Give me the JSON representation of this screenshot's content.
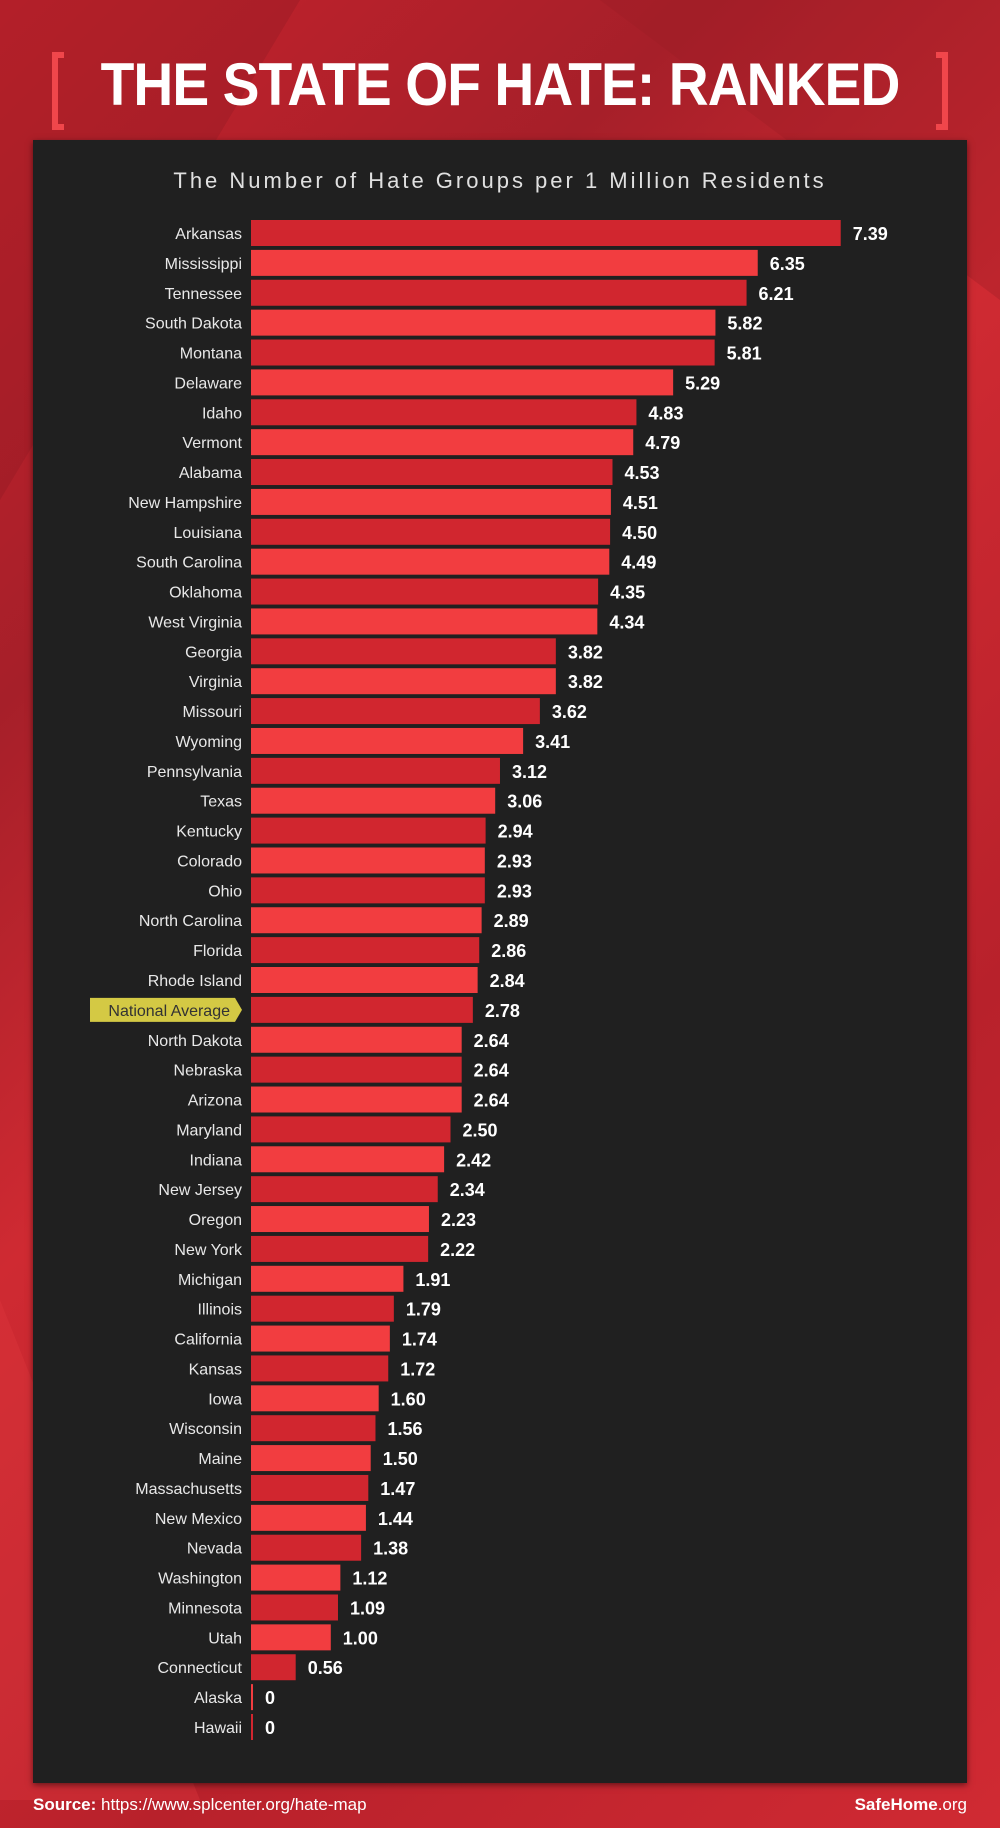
{
  "title": "THE STATE OF HATE: RANKED",
  "footer": {
    "source_label": "Source:",
    "source_url": "https://www.splcenter.org/hate-map",
    "brand_bold": "SafeHome",
    "brand_rest": ".org"
  },
  "colors": {
    "bar_dark": "#d1262f",
    "bar_light": "#f23d40",
    "highlight": "#d4c944",
    "panel": "#202020",
    "background": "#c1272d"
  },
  "chart_data": {
    "type": "bar",
    "orientation": "horizontal",
    "title": "The Number of Hate Groups per 1 Million Residents",
    "highlight": "National Average",
    "categories": [
      "Arkansas",
      "Mississippi",
      "Tennessee",
      "South Dakota",
      "Montana",
      "Delaware",
      "Idaho",
      "Vermont",
      "Alabama",
      "New Hampshire",
      "Louisiana",
      "South Carolina",
      "Oklahoma",
      "West Virginia",
      "Georgia",
      "Virginia",
      "Missouri",
      "Wyoming",
      "Pennsylvania",
      "Texas",
      "Kentucky",
      "Colorado",
      "Ohio",
      "North Carolina",
      "Florida",
      "Rhode Island",
      "National Average",
      "North Dakota",
      "Nebraska",
      "Arizona",
      "Maryland",
      "Indiana",
      "New Jersey",
      "Oregon",
      "New York",
      "Michigan",
      "Illinois",
      "California",
      "Kansas",
      "Iowa",
      "Wisconsin",
      "Maine",
      "Massachusetts",
      "New Mexico",
      "Nevada",
      "Washington",
      "Minnesota",
      "Utah",
      "Connecticut",
      "Alaska",
      "Hawaii"
    ],
    "values": [
      7.39,
      6.35,
      6.21,
      5.82,
      5.81,
      5.29,
      4.83,
      4.79,
      4.53,
      4.51,
      4.5,
      4.49,
      4.35,
      4.34,
      3.82,
      3.82,
      3.62,
      3.41,
      3.12,
      3.06,
      2.94,
      2.93,
      2.93,
      2.89,
      2.86,
      2.84,
      2.78,
      2.64,
      2.64,
      2.64,
      2.5,
      2.42,
      2.34,
      2.23,
      2.22,
      1.91,
      1.79,
      1.74,
      1.72,
      1.6,
      1.56,
      1.5,
      1.47,
      1.44,
      1.38,
      1.12,
      1.09,
      1.0,
      0.56,
      0,
      0
    ],
    "value_labels": [
      "7.39",
      "6.35",
      "6.21",
      "5.82",
      "5.81",
      "5.29",
      "4.83",
      "4.79",
      "4.53",
      "4.51",
      "4.50",
      "4.49",
      "4.35",
      "4.34",
      "3.82",
      "3.82",
      "3.62",
      "3.41",
      "3.12",
      "3.06",
      "2.94",
      "2.93",
      "2.93",
      "2.89",
      "2.86",
      "2.84",
      "2.78",
      "2.64",
      "2.64",
      "2.64",
      "2.50",
      "2.42",
      "2.34",
      "2.23",
      "2.22",
      "1.91",
      "1.79",
      "1.74",
      "1.72",
      "1.60",
      "1.56",
      "1.50",
      "1.47",
      "1.44",
      "1.38",
      "1.12",
      "1.09",
      "1.00",
      "0.56",
      "0",
      "0"
    ],
    "grid": false
  }
}
